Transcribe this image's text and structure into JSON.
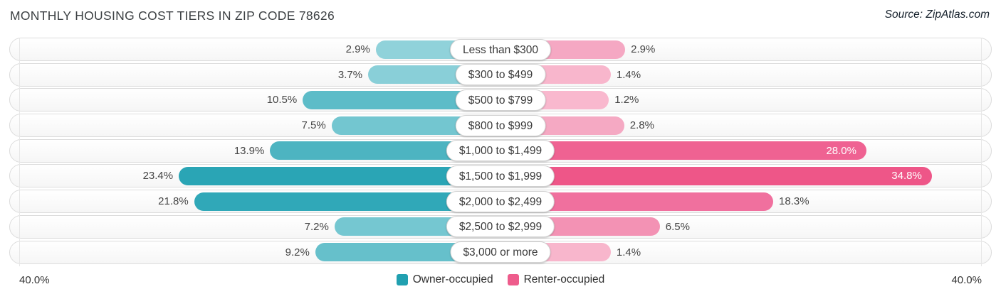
{
  "header": {
    "title": "MONTHLY HOUSING COST TIERS IN ZIP CODE 78626",
    "source": "Source: ZipAtlas.com"
  },
  "axis": {
    "left_max_label": "40.0%",
    "right_max_label": "40.0%",
    "max_value": 40
  },
  "legend": {
    "items": [
      {
        "label": "Owner-occupied",
        "color": "#21a0b0"
      },
      {
        "label": "Renter-occupied",
        "color": "#ee5c8c"
      }
    ]
  },
  "chart_data": {
    "type": "bar",
    "subtype": "bidirectional-horizontal",
    "title": "Monthly Housing Cost Tiers in Zip Code 78626",
    "categories": [
      "Less than $300",
      "$300 to $499",
      "$500 to $799",
      "$800 to $999",
      "$1,000 to $1,499",
      "$1,500 to $1,999",
      "$2,000 to $2,499",
      "$2,500 to $2,999",
      "$3,000 or more"
    ],
    "series": [
      {
        "name": "Owner-occupied",
        "side": "left",
        "values": [
          2.9,
          3.7,
          10.5,
          7.5,
          13.9,
          23.4,
          21.8,
          7.2,
          9.2
        ]
      },
      {
        "name": "Renter-occupied",
        "side": "right",
        "values": [
          2.9,
          1.4,
          1.2,
          2.8,
          28.0,
          34.8,
          18.3,
          6.5,
          1.4
        ]
      }
    ],
    "xlim": [
      -40,
      40
    ],
    "legend_position": "bottom",
    "grid": "40% reference lines at both extremes"
  },
  "rows": [
    {
      "category": "Less than $300",
      "owner": 2.9,
      "renter": 2.9,
      "owner_label": "2.9%",
      "renter_label": "2.9%",
      "owner_color": "#90d2da",
      "renter_color": "#f5a8c3"
    },
    {
      "category": "$300 to $499",
      "owner": 3.7,
      "renter": 1.4,
      "owner_label": "3.7%",
      "renter_label": "1.4%",
      "owner_color": "#89cfd8",
      "renter_color": "#f8b6cc"
    },
    {
      "category": "$500 to $799",
      "owner": 10.5,
      "renter": 1.2,
      "owner_label": "10.5%",
      "renter_label": "1.2%",
      "owner_color": "#5dbcc8",
      "renter_color": "#f9b8ce"
    },
    {
      "category": "$800 to $999",
      "owner": 7.5,
      "renter": 2.8,
      "owner_label": "7.5%",
      "renter_label": "2.8%",
      "owner_color": "#73c6d0",
      "renter_color": "#f5a9c3"
    },
    {
      "category": "$1,000 to $1,499",
      "owner": 13.9,
      "renter": 28.0,
      "owner_label": "13.9%",
      "renter_label": "28.0%",
      "owner_color": "#4db4c1",
      "renter_color": "#ef6292"
    },
    {
      "category": "$1,500 to $1,999",
      "owner": 23.4,
      "renter": 34.8,
      "owner_label": "23.4%",
      "renter_label": "34.8%",
      "owner_color": "#2aa5b5",
      "renter_color": "#ee5688"
    },
    {
      "category": "$2,000 to $2,499",
      "owner": 21.8,
      "renter": 18.3,
      "owner_label": "21.8%",
      "renter_label": "18.3%",
      "owner_color": "#30a8b8",
      "renter_color": "#f0709e"
    },
    {
      "category": "$2,500 to $2,999",
      "owner": 7.2,
      "renter": 6.5,
      "owner_label": "7.2%",
      "renter_label": "6.5%",
      "owner_color": "#75c7d1",
      "renter_color": "#f392b4"
    },
    {
      "category": "$3,000 or more",
      "owner": 9.2,
      "renter": 1.4,
      "owner_label": "9.2%",
      "renter_label": "1.4%",
      "owner_color": "#66c0cb",
      "renter_color": "#f8b6cc"
    }
  ]
}
